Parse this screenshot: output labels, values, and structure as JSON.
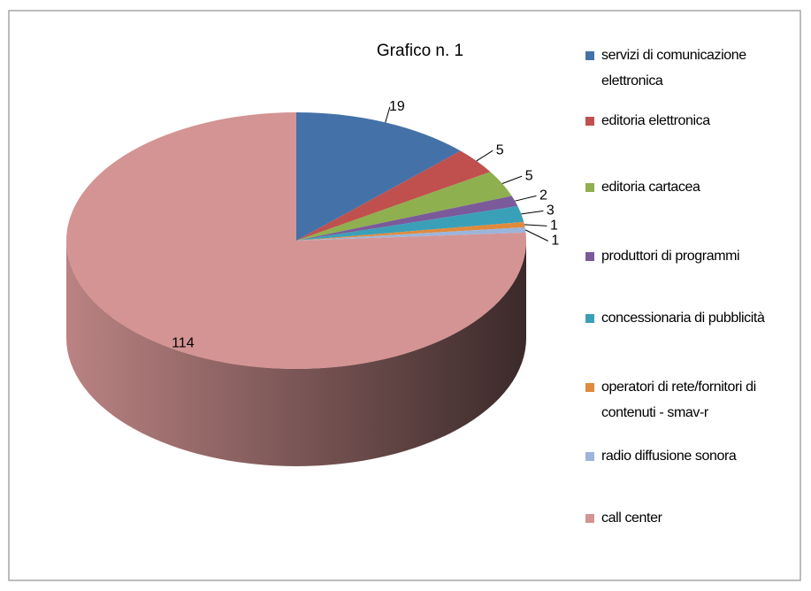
{
  "chart_data": {
    "type": "pie3d",
    "title": "Grafico n. 1",
    "categories": [
      "servizi di comunicazione elettronica",
      "editoria elettronica",
      "editoria cartacea",
      "produttori di programmi",
      "concessionaria di pubblicità",
      "operatori di rete/fornitori di contenuti - smav-r",
      "radio diffusione sonora",
      "call center"
    ],
    "values": [
      19,
      5,
      5,
      2,
      3,
      1,
      1,
      114
    ],
    "colors": [
      "#4472a8",
      "#c0504d",
      "#8eb04f",
      "#7a5a9a",
      "#3aa0b8",
      "#e08a3c",
      "#9bb5dc",
      "#d49494"
    ],
    "legend": "right"
  }
}
